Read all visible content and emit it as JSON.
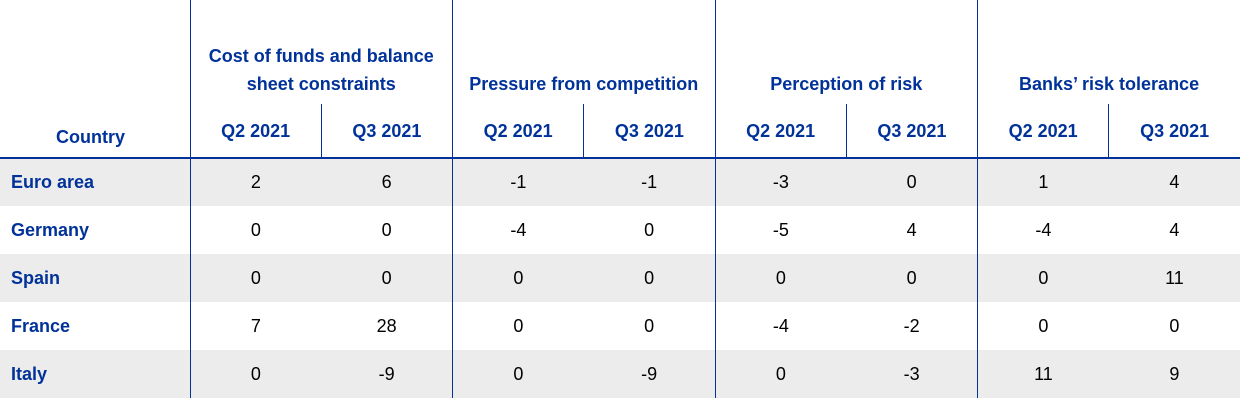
{
  "table": {
    "country_header": "Country",
    "groups": [
      "Cost of funds and balance sheet constraints",
      "Pressure from competition",
      "Perception of risk",
      "Banks’ risk tolerance"
    ],
    "subheaders": [
      "Q2 2021",
      "Q3 2021",
      "Q2 2021",
      "Q3 2021",
      "Q2 2021",
      "Q3 2021",
      "Q2 2021",
      "Q3 2021"
    ],
    "rows": [
      {
        "country": "Euro area",
        "values": [
          "2",
          "6",
          "-1",
          "-1",
          "-3",
          "0",
          "1",
          "4"
        ]
      },
      {
        "country": "Germany",
        "values": [
          "0",
          "0",
          "-4",
          "0",
          "-5",
          "4",
          "-4",
          "4"
        ]
      },
      {
        "country": "Spain",
        "values": [
          "0",
          "0",
          "0",
          "0",
          "0",
          "0",
          "0",
          "11"
        ]
      },
      {
        "country": "France",
        "values": [
          "7",
          "28",
          "0",
          "0",
          "-4",
          "-2",
          "0",
          "0"
        ]
      },
      {
        "country": "Italy",
        "values": [
          "0",
          "-9",
          "0",
          "-9",
          "0",
          "-3",
          "11",
          "9"
        ]
      }
    ]
  }
}
